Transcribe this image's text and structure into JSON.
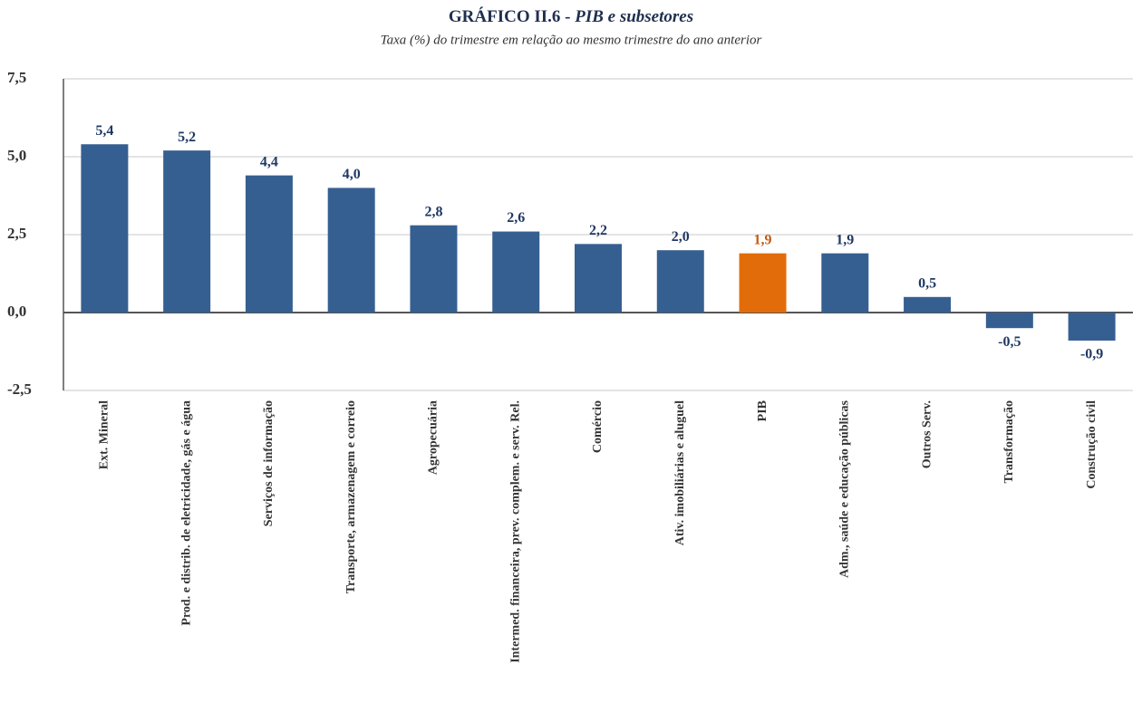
{
  "chart_data": {
    "type": "bar",
    "title": [
      "GRÁFICO II.6 - ",
      "PIB e subsetores"
    ],
    "subtitle": "Taxa (%) do trimestre em relação ao mesmo trimestre do ano anterior",
    "categories": [
      "Ext. Mineral",
      "Prod. e distrib. de eletricidade, gás e água",
      "Serviços de informação",
      "Transporte, armazenagem e correio",
      "Agropecuária",
      "Intermed. financeira, prev. complem. e serv. Rel.",
      "Comércio",
      "Ativ. imobiliárias e aluguel",
      "PIB",
      "Adm., saúde e educação públicas",
      "Outros Serv.",
      "Transformação",
      "Construção civil"
    ],
    "values": [
      5.4,
      5.2,
      4.4,
      4.0,
      2.8,
      2.6,
      2.2,
      2.0,
      1.9,
      1.9,
      0.5,
      -0.5,
      -0.9
    ],
    "value_labels": [
      "5,4",
      "5,2",
      "4,4",
      "4,0",
      "2,8",
      "2,6",
      "2,2",
      "2,0",
      "1,9",
      "1,9",
      "0,5",
      "-0,5",
      "-0,9"
    ],
    "colors": [
      "#365f91",
      "#365f91",
      "#365f91",
      "#365f91",
      "#365f91",
      "#365f91",
      "#365f91",
      "#365f91",
      "#e36c0a",
      "#365f91",
      "#365f91",
      "#365f91",
      "#365f91"
    ],
    "ylim": [
      -2.5,
      7.5
    ],
    "yticks": [
      {
        "value": -2.5,
        "label": "-2,5"
      },
      {
        "value": 0,
        "label": "0,0"
      },
      {
        "value": 2.5,
        "label": "2,5"
      },
      {
        "value": 5,
        "label": "5,0"
      },
      {
        "value": 7.5,
        "label": "7,5"
      }
    ],
    "grid": true
  }
}
